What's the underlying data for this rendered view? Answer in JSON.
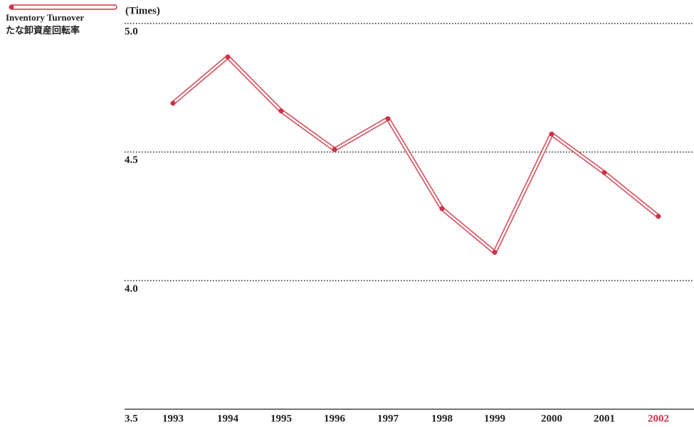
{
  "chart_data": {
    "type": "line",
    "y_axis_label": "(Times)",
    "categories": [
      "1993",
      "1994",
      "1995",
      "1996",
      "1997",
      "1998",
      "1999",
      "2000",
      "2001",
      "2002"
    ],
    "category_label_colors": [
      "#222222",
      "#222222",
      "#222222",
      "#222222",
      "#222222",
      "#222222",
      "#222222",
      "#222222",
      "#222222",
      "#cc3344"
    ],
    "series": [
      {
        "name": "Inventory Turnover",
        "name_ja": "たな卸資産回転率",
        "color": "#cc3344",
        "values": [
          4.69,
          4.87,
          4.66,
          4.51,
          4.63,
          4.28,
          4.11,
          4.57,
          4.42,
          4.25
        ]
      }
    ],
    "ylim": [
      3.5,
      5.0
    ],
    "yticks": [
      {
        "value": 3.5,
        "label": "3.5"
      },
      {
        "value": 4.0,
        "label": "4.0"
      },
      {
        "value": 4.5,
        "label": "4.5"
      },
      {
        "value": 5.0,
        "label": "5.0"
      }
    ],
    "grid": true
  }
}
